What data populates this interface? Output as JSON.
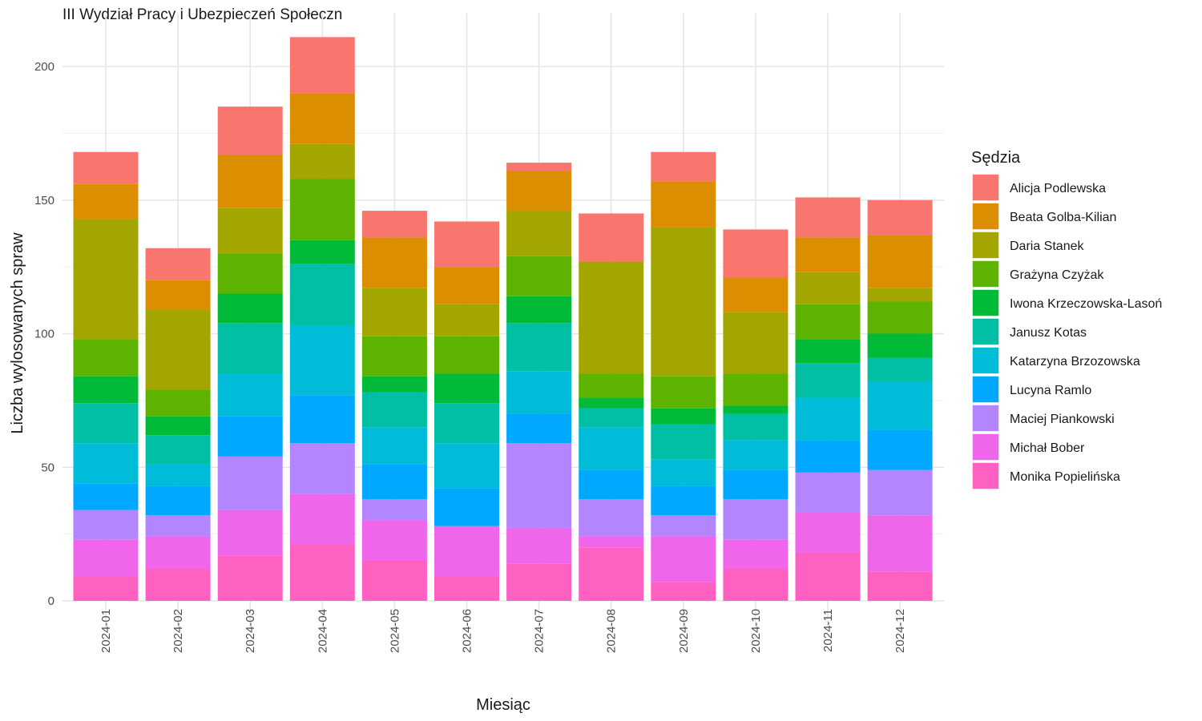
{
  "chart_data": {
    "type": "bar",
    "stacked": true,
    "title": "III Wydział Pracy i Ubezpieczeń Społeczn",
    "xlabel": "Miesiąc",
    "ylabel": "Liczba wylosowanych spraw",
    "ylim": [
      -10,
      220
    ],
    "yticks": [
      0,
      50,
      100,
      150,
      200
    ],
    "grid": true,
    "legend_title": "Sędzia",
    "legend_position": "right",
    "categories": [
      "2024-01",
      "2024-02",
      "2024-03",
      "2024-04",
      "2024-05",
      "2024-06",
      "2024-07",
      "2024-08",
      "2024-09",
      "2024-10",
      "2024-11",
      "2024-12"
    ],
    "series": [
      {
        "name": "Monika Popielińska",
        "color": "#FF61C3",
        "values": [
          9,
          12,
          17,
          21,
          15,
          9,
          14,
          20,
          7,
          12,
          18,
          11
        ]
      },
      {
        "name": "Michał Bober",
        "color": "#F066EA",
        "values": [
          14,
          12,
          17,
          19,
          15,
          19,
          13,
          4,
          17,
          11,
          15,
          21
        ]
      },
      {
        "name": "Maciej Piankowski",
        "color": "#B385FF",
        "values": [
          11,
          8,
          20,
          19,
          8,
          0,
          32,
          14,
          8,
          15,
          15,
          17
        ]
      },
      {
        "name": "Lucyna Ramlo",
        "color": "#00A9FF",
        "values": [
          10,
          11,
          15,
          18,
          13,
          14,
          11,
          11,
          11,
          11,
          12,
          15
        ]
      },
      {
        "name": "Katarzyna Brzozowska",
        "color": "#00BCD8",
        "values": [
          15,
          8,
          16,
          26,
          14,
          17,
          16,
          16,
          10,
          11,
          16,
          18
        ]
      },
      {
        "name": "Janusz Kotas",
        "color": "#00BFA4",
        "values": [
          15,
          11,
          19,
          23,
          13,
          15,
          18,
          7,
          13,
          10,
          13,
          9
        ]
      },
      {
        "name": "Iwona Krzeczowska-Lasoń",
        "color": "#00BA38",
        "values": [
          10,
          7,
          11,
          9,
          6,
          11,
          10,
          4,
          6,
          3,
          9,
          9
        ]
      },
      {
        "name": "Grażyna Czyżak",
        "color": "#5EB300",
        "values": [
          14,
          10,
          15,
          23,
          15,
          14,
          15,
          9,
          12,
          12,
          13,
          12
        ]
      },
      {
        "name": "Daria Stanek",
        "color": "#A3A500",
        "values": [
          45,
          30,
          17,
          13,
          18,
          12,
          17,
          42,
          56,
          23,
          12,
          5
        ]
      },
      {
        "name": "Beata Golba-Kilian",
        "color": "#DB8E00",
        "values": [
          13,
          11,
          20,
          19,
          19,
          14,
          15,
          0,
          17,
          13,
          13,
          20
        ]
      },
      {
        "name": "Alicja Podlewska",
        "color": "#F8766D",
        "values": [
          12,
          12,
          18,
          21,
          10,
          17,
          3,
          18,
          11,
          18,
          15,
          13
        ]
      }
    ],
    "legend_order": [
      "Alicja Podlewska",
      "Beata Golba-Kilian",
      "Daria Stanek",
      "Grażyna Czyżak",
      "Iwona Krzeczowska-Lasoń",
      "Janusz Kotas",
      "Katarzyna Brzozowska",
      "Lucyna Ramlo",
      "Maciej Piankowski",
      "Michał Bober",
      "Monika Popielińska"
    ]
  }
}
